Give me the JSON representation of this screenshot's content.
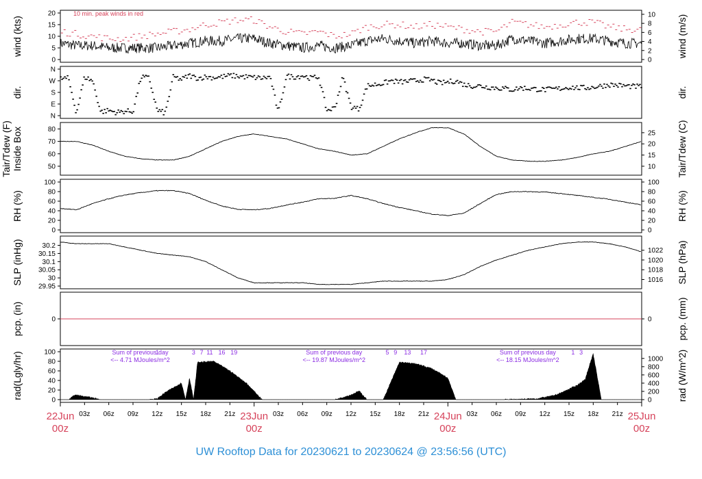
{
  "footer": {
    "title": "UW Rooftop Data for 20230621  to  20230624 @ 23:56:56  (UTC)"
  },
  "colors": {
    "accent_red": "#d6425a",
    "accent_blue": "#2c8fd6",
    "purple": "#8a2be2",
    "line": "#000000"
  },
  "x_axis": {
    "hours_total": 72,
    "hour_ticks": [
      {
        "h": 3,
        "label": "03z"
      },
      {
        "h": 6,
        "label": "06z"
      },
      {
        "h": 9,
        "label": "09z"
      },
      {
        "h": 12,
        "label": "12z"
      },
      {
        "h": 15,
        "label": "15z"
      },
      {
        "h": 18,
        "label": "18z"
      },
      {
        "h": 21,
        "label": "21z"
      },
      {
        "h": 27,
        "label": "03z"
      },
      {
        "h": 30,
        "label": "06z"
      },
      {
        "h": 33,
        "label": "09z"
      },
      {
        "h": 36,
        "label": "12z"
      },
      {
        "h": 39,
        "label": "15z"
      },
      {
        "h": 42,
        "label": "18z"
      },
      {
        "h": 45,
        "label": "21z"
      },
      {
        "h": 51,
        "label": "03z"
      },
      {
        "h": 54,
        "label": "06z"
      },
      {
        "h": 57,
        "label": "09z"
      },
      {
        "h": 60,
        "label": "12z"
      },
      {
        "h": 63,
        "label": "15z"
      },
      {
        "h": 66,
        "label": "18z"
      },
      {
        "h": 69,
        "label": "21z"
      }
    ],
    "day_labels": [
      {
        "h": 0,
        "line1": "22Jun",
        "line2": "00z"
      },
      {
        "h": 24,
        "line1": "23Jun",
        "line2": "00z"
      },
      {
        "h": 48,
        "line1": "24Jun",
        "line2": "00z"
      },
      {
        "h": 72,
        "line1": "25Jun",
        "line2": "00z"
      }
    ]
  },
  "chart_data": [
    {
      "type": "line",
      "id": "wind",
      "ylabel_left": "wind (kts)",
      "ylabel_right": "wind (m/s)",
      "note": "10 min. peak winds in red",
      "ylim": [
        0,
        20
      ],
      "yticks_left": [
        0,
        5,
        10,
        15,
        20
      ],
      "yticks_right": [
        {
          "label": "0",
          "v": 0
        },
        {
          "label": "2",
          "v": 3.89
        },
        {
          "label": "4",
          "v": 7.78
        },
        {
          "label": "6",
          "v": 11.66
        },
        {
          "label": "8",
          "v": 15.55
        },
        {
          "label": "10",
          "v": 19.44
        }
      ],
      "series": [
        {
          "name": "wind speed",
          "x": [
            0,
            2,
            4,
            6,
            8,
            10,
            12,
            14,
            16,
            18,
            20,
            22,
            24,
            26,
            28,
            30,
            32,
            34,
            36,
            38,
            40,
            42,
            44,
            46,
            48,
            50,
            52,
            54,
            56,
            58,
            60,
            62,
            64,
            66,
            68,
            70,
            72
          ],
          "values": [
            7,
            6,
            6,
            5,
            5,
            5,
            5,
            6,
            7,
            8,
            8,
            9,
            9,
            7,
            6,
            5,
            6,
            5,
            6,
            8,
            9,
            8,
            7,
            8,
            7,
            7,
            6,
            6,
            9,
            8,
            7,
            8,
            9,
            9,
            8,
            7,
            7
          ]
        },
        {
          "name": "10 min. peak winds",
          "x": [
            0,
            2,
            4,
            6,
            8,
            10,
            12,
            14,
            16,
            18,
            20,
            22,
            24,
            26,
            28,
            30,
            32,
            34,
            36,
            38,
            40,
            42,
            44,
            46,
            48,
            50,
            52,
            54,
            56,
            58,
            60,
            62,
            64,
            66,
            68,
            70,
            72
          ],
          "values": [
            12,
            11,
            10,
            9,
            9,
            10,
            11,
            12,
            13,
            15,
            16,
            17,
            17,
            14,
            12,
            11,
            12,
            10,
            11,
            14,
            15,
            15,
            14,
            15,
            14,
            13,
            12,
            12,
            16,
            15,
            14,
            15,
            16,
            16,
            14,
            13,
            13
          ]
        }
      ]
    },
    {
      "type": "scatter",
      "id": "dir",
      "ylabel_left": "dir.",
      "ylabel_right": "dir.",
      "ylim": [
        0,
        360
      ],
      "yticks_left": [
        {
          "label": "N",
          "v": 0
        },
        {
          "label": "E",
          "v": 90
        },
        {
          "label": "S",
          "v": 180
        },
        {
          "label": "W",
          "v": 270
        },
        {
          "label": "N",
          "v": 360
        }
      ],
      "series": [
        {
          "name": "direction",
          "x": [
            0,
            1,
            2,
            3,
            4,
            5,
            6,
            7,
            8,
            9,
            10,
            11,
            12,
            13,
            14,
            15,
            16,
            17,
            18,
            19,
            20,
            21,
            22,
            23,
            24,
            25,
            26,
            27,
            28,
            29,
            30,
            31,
            32,
            33,
            34,
            35,
            36,
            37,
            38,
            39,
            40,
            41,
            42,
            43,
            44,
            45,
            46,
            47,
            48,
            49,
            50,
            51,
            52,
            53,
            54,
            55,
            56,
            57,
            58,
            59,
            60,
            61,
            62,
            63,
            64,
            65,
            66,
            67,
            68,
            69,
            70,
            71
          ],
          "values": [
            285,
            290,
            20,
            300,
            270,
            30,
            40,
            25,
            35,
            30,
            300,
            290,
            40,
            20,
            300,
            280,
            310,
            290,
            300,
            295,
            300,
            310,
            305,
            300,
            295,
            290,
            300,
            20,
            305,
            300,
            310,
            290,
            300,
            40,
            60,
            300,
            70,
            50,
            230,
            240,
            250,
            270,
            260,
            265,
            270,
            280,
            275,
            250,
            260,
            270,
            240,
            230,
            230,
            220,
            215,
            210,
            200,
            215,
            210,
            205,
            200,
            205,
            210,
            220,
            215,
            215,
            220,
            230,
            240,
            235,
            230,
            225
          ]
        }
      ]
    },
    {
      "type": "line",
      "id": "temp",
      "ylabel_left": "Inside Box",
      "ylabel_left2": "Tair/Tdew (F)",
      "ylabel_right": "Tair/Tdew (C)",
      "ylim": [
        45,
        83
      ],
      "yticks_left": [
        50,
        60,
        70,
        80
      ],
      "yticks_right": [
        {
          "label": "10",
          "v": 50
        },
        {
          "label": "15",
          "v": 59
        },
        {
          "label": "20",
          "v": 68
        },
        {
          "label": "25",
          "v": 77
        }
      ],
      "series": [
        {
          "name": "Tair",
          "x": [
            0,
            2,
            4,
            6,
            8,
            10,
            12,
            14,
            16,
            18,
            20,
            22,
            24,
            26,
            28,
            30,
            32,
            34,
            36,
            38,
            40,
            42,
            44,
            46,
            48,
            50,
            52,
            54,
            56,
            58,
            60,
            62,
            64,
            66,
            68,
            70,
            72
          ],
          "values": [
            70,
            70,
            67,
            62,
            58,
            56,
            55,
            55,
            58,
            64,
            70,
            74,
            76,
            74,
            72,
            68,
            64,
            62,
            59,
            60,
            66,
            72,
            77,
            81,
            81,
            76,
            66,
            58,
            55,
            54,
            54,
            55,
            57,
            60,
            62,
            66,
            70
          ]
        }
      ]
    },
    {
      "type": "line",
      "id": "rh",
      "ylabel_left": "RH (%)",
      "ylabel_right": "RH (%)",
      "ylim": [
        0,
        100
      ],
      "yticks_left": [
        0,
        20,
        40,
        60,
        80,
        100
      ],
      "yticks_right": [
        {
          "label": "0",
          "v": 0
        },
        {
          "label": "20",
          "v": 20
        },
        {
          "label": "40",
          "v": 40
        },
        {
          "label": "60",
          "v": 60
        },
        {
          "label": "80",
          "v": 80
        },
        {
          "label": "100",
          "v": 100
        }
      ],
      "series": [
        {
          "name": "RH",
          "x": [
            0,
            2,
            4,
            6,
            8,
            10,
            12,
            14,
            16,
            18,
            20,
            22,
            24,
            26,
            28,
            30,
            32,
            34,
            36,
            38,
            40,
            42,
            44,
            46,
            48,
            50,
            52,
            54,
            56,
            58,
            60,
            62,
            64,
            66,
            68,
            70,
            72
          ],
          "values": [
            45,
            42,
            55,
            65,
            73,
            78,
            82,
            82,
            76,
            62,
            50,
            43,
            42,
            45,
            52,
            58,
            65,
            66,
            72,
            65,
            55,
            47,
            40,
            33,
            30,
            35,
            55,
            74,
            80,
            80,
            79,
            76,
            72,
            68,
            64,
            58,
            52
          ]
        }
      ]
    },
    {
      "type": "line",
      "id": "slp",
      "ylabel_left": "SLP (inHg)",
      "ylabel_right": "SLP (hPa)",
      "ylim": [
        29.95,
        30.24
      ],
      "yticks_left": [
        29.95,
        30.0,
        30.05,
        30.1,
        30.15,
        30.2
      ],
      "yticks_right": [
        {
          "label": "1016",
          "v": 29.99
        },
        {
          "label": "1018",
          "v": 30.05
        },
        {
          "label": "1020",
          "v": 30.11
        },
        {
          "label": "1022",
          "v": 30.17
        }
      ],
      "series": [
        {
          "name": "SLP",
          "x": [
            0,
            2,
            4,
            6,
            8,
            10,
            12,
            14,
            16,
            18,
            20,
            22,
            24,
            26,
            28,
            30,
            32,
            34,
            36,
            38,
            40,
            42,
            44,
            46,
            48,
            50,
            52,
            54,
            56,
            58,
            60,
            62,
            64,
            66,
            68,
            70,
            72
          ],
          "values": [
            30.22,
            30.21,
            30.21,
            30.21,
            30.19,
            30.17,
            30.15,
            30.14,
            30.13,
            30.1,
            30.05,
            30.0,
            29.97,
            29.97,
            29.97,
            29.97,
            29.96,
            29.96,
            29.96,
            29.97,
            29.98,
            29.98,
            29.98,
            29.98,
            29.99,
            30.02,
            30.07,
            30.11,
            30.14,
            30.17,
            30.19,
            30.21,
            30.22,
            30.22,
            30.21,
            30.19,
            30.16
          ]
        }
      ]
    },
    {
      "type": "line",
      "id": "pcp",
      "ylabel_left": "pcp. (in)",
      "ylabel_right": "pcp. (mm)",
      "ylim": [
        -1,
        1
      ],
      "yticks_left": [
        {
          "label": "0",
          "v": 0
        }
      ],
      "yticks_right": [
        {
          "label": "0",
          "v": 0
        }
      ],
      "series": [
        {
          "name": "precip",
          "x": [
            0,
            72
          ],
          "values": [
            0,
            0
          ]
        }
      ]
    },
    {
      "type": "area",
      "id": "rad",
      "ylabel_left": "rad(Lgly/hr)",
      "ylabel_right": "rad (W/m^2)",
      "ylim": [
        0,
        100
      ],
      "yticks_left": [
        0,
        20,
        40,
        60,
        80,
        100
      ],
      "yticks_right": [
        {
          "label": "0",
          "v": 0
        },
        {
          "label": "200",
          "v": 17.2
        },
        {
          "label": "400",
          "v": 34.4
        },
        {
          "label": "600",
          "v": 51.6
        },
        {
          "label": "800",
          "v": 68.8
        },
        {
          "label": "1000",
          "v": 86
        }
      ],
      "annotations": [
        {
          "h": 6.5,
          "line1": "Sum of previous day",
          "line2": "<-- 4.71 MJoules/m^2"
        },
        {
          "h": 30.5,
          "line1": "Sum of previous day",
          "line2": "<-- 19.87 MJoules/m^2"
        },
        {
          "h": 54.5,
          "line1": "Sum of previous day",
          "line2": "<-- 18.15 MJoules/m^2"
        }
      ],
      "hour_marks": [
        {
          "h": 12,
          "label": "1"
        },
        {
          "h": 16.5,
          "label": "3"
        },
        {
          "h": 17.5,
          "label": "7"
        },
        {
          "h": 18.5,
          "label": "11"
        },
        {
          "h": 20,
          "label": "16"
        },
        {
          "h": 21.5,
          "label": "19"
        },
        {
          "h": 40.5,
          "label": "5"
        },
        {
          "h": 41.5,
          "label": "9"
        },
        {
          "h": 43,
          "label": "13"
        },
        {
          "h": 45,
          "label": "17"
        },
        {
          "h": 63.5,
          "label": "1"
        },
        {
          "h": 64.5,
          "label": "3"
        }
      ],
      "series": [
        {
          "name": "radiation",
          "x": [
            0,
            1,
            1.8,
            2.5,
            4,
            5,
            11,
            12,
            13,
            14,
            15,
            15.5,
            16,
            16.5,
            17,
            19,
            21,
            23,
            25,
            30,
            34,
            36,
            37,
            38,
            40,
            42,
            44,
            46,
            48,
            49,
            50,
            55,
            59,
            61,
            62,
            63,
            64,
            65,
            65.5,
            66,
            67,
            68,
            69,
            70,
            72
          ],
          "values": [
            0,
            0,
            10,
            8,
            4,
            0,
            0,
            2,
            15,
            25,
            35,
            0,
            45,
            0,
            78,
            80,
            60,
            35,
            0,
            0,
            0,
            10,
            18,
            0,
            0,
            78,
            75,
            65,
            45,
            0,
            0,
            0,
            2,
            8,
            14,
            22,
            30,
            42,
            70,
            95,
            0,
            0,
            0,
            0,
            0
          ]
        }
      ]
    }
  ]
}
